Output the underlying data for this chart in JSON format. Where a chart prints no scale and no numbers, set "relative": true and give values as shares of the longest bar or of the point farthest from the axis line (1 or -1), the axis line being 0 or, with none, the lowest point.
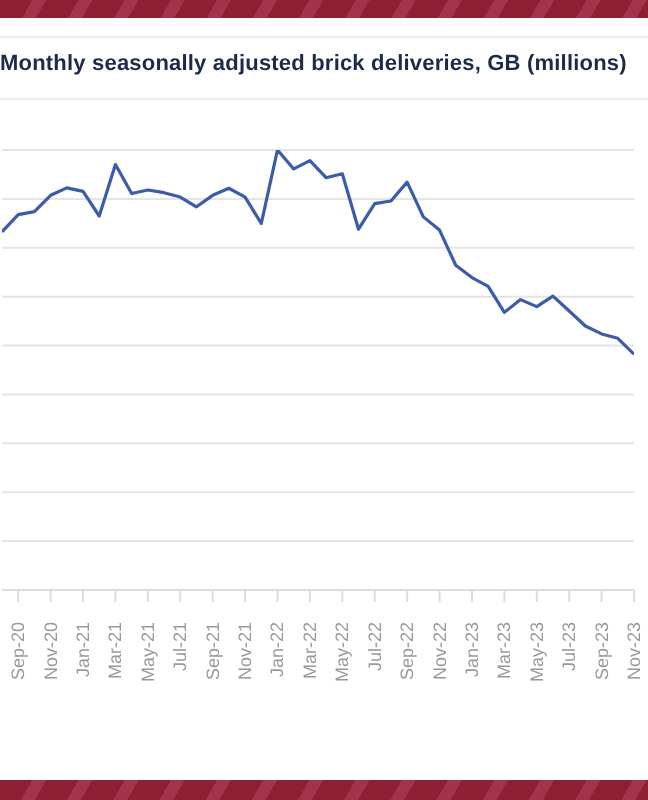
{
  "chart_data": {
    "type": "line",
    "title": "Monthly seasonally adjusted brick deliveries, GB (millions)",
    "relative": true,
    "grid": "y",
    "marker": "none",
    "categories": [
      null,
      "Sep-20",
      null,
      "Nov-20",
      null,
      "Jan-21",
      null,
      "Mar-21",
      null,
      "May-21",
      null,
      "Jul-21",
      null,
      "Sep-21",
      null,
      "Nov-21",
      null,
      "Jan-22",
      null,
      "Mar-22",
      null,
      "May-22",
      null,
      "Jul-22",
      null,
      "Sep-22",
      null,
      "Nov-22",
      null,
      "Jan-23",
      null,
      "Mar-23",
      null,
      "May-23",
      null,
      "Jul-23",
      null,
      "Sep-23",
      null,
      "Nov-23"
    ],
    "series": [
      {
        "color": "#3b5ca8",
        "values": [
          0.814,
          0.853,
          0.86,
          0.897,
          0.914,
          0.906,
          0.85,
          0.967,
          0.901,
          0.909,
          0.903,
          0.893,
          0.871,
          0.897,
          0.913,
          0.893,
          0.833,
          1,
          0.957,
          0.976,
          0.937,
          0.946,
          0.82,
          0.878,
          0.884,
          0.927,
          0.848,
          0.818,
          0.738,
          0.71,
          0.69,
          0.631,
          0.66,
          0.644,
          0.668,
          0.634,
          0.6,
          0.582,
          0.572,
          0.536
        ]
      }
    ]
  }
}
